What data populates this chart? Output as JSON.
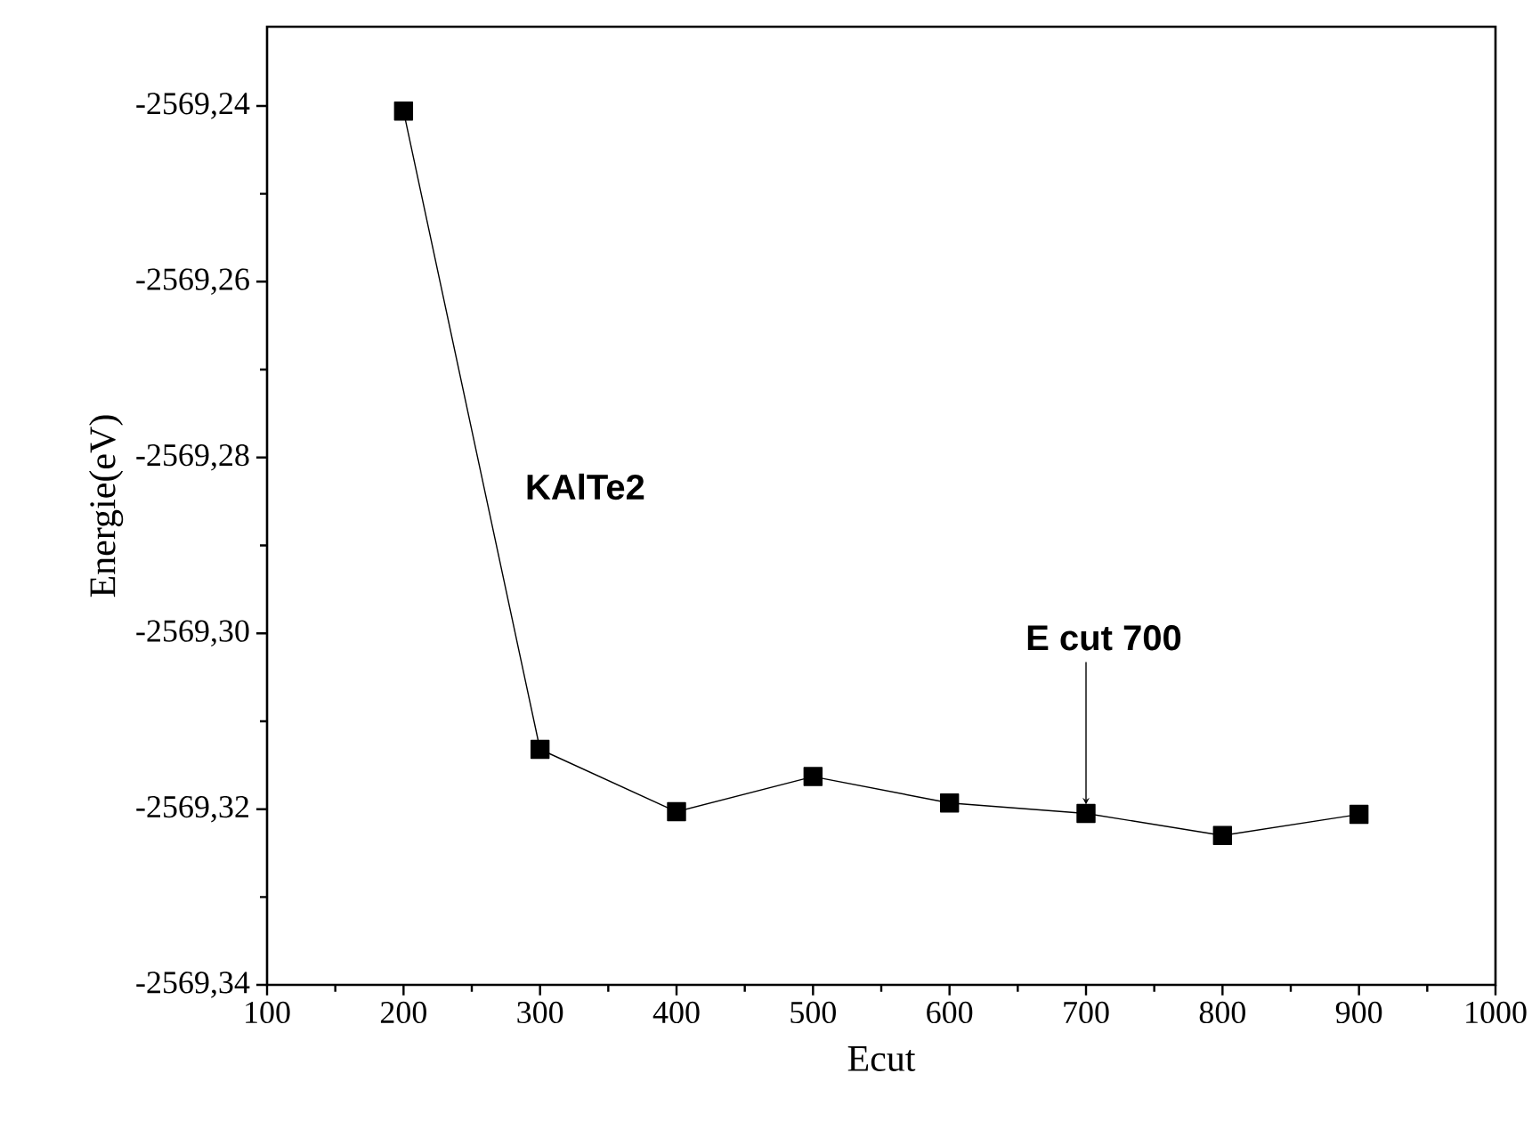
{
  "chart_data": {
    "type": "line",
    "xlabel": "Ecut",
    "ylabel": "Energie(eV)",
    "x": [
      200,
      300,
      400,
      500,
      600,
      700,
      800,
      900
    ],
    "series": [
      {
        "color": "#000000",
        "values": [
          -2569.2406,
          -2569.3132,
          -2569.3203,
          -2569.3163,
          -2569.3193,
          -2569.3205,
          -2569.323,
          -2569.3206
        ]
      }
    ],
    "marker": "square",
    "line_style": "solid",
    "grid": false,
    "xlim": [
      100,
      1000
    ],
    "xticks": [
      100,
      200,
      300,
      400,
      500,
      600,
      700,
      800,
      900,
      1000
    ],
    "ylim": [
      -2569.34,
      -2569.231
    ],
    "yticks": [
      {
        "value": -2569.34,
        "label": "-2569,34"
      },
      {
        "value": -2569.32,
        "label": "-2569,32"
      },
      {
        "value": -2569.3,
        "label": "-2569,30"
      },
      {
        "value": -2569.28,
        "label": "-2569,28"
      },
      {
        "value": -2569.26,
        "label": "-2569,26"
      },
      {
        "value": -2569.24,
        "label": "-2569,24"
      }
    ],
    "annotations": [
      "KAlTe2",
      {
        "text": "E cut 700",
        "x": 700,
        "y": -2569.3205
      }
    ]
  }
}
